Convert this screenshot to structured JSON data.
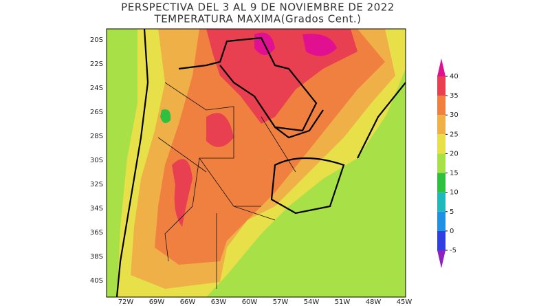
{
  "header": {
    "title": "PERSPECTIVA DEL 3 AL 9 DE NOVIEMBRE DE 2022",
    "subtitle": "TEMPERATURA MAXIMA(Grados Cent.)"
  },
  "map": {
    "lat_labels": [
      "20S",
      "22S",
      "24S",
      "26S",
      "28S",
      "30S",
      "32S",
      "34S",
      "36S",
      "38S",
      "40S"
    ],
    "lon_labels": [
      "72W",
      "69W",
      "66W",
      "63W",
      "60W",
      "57W",
      "54W",
      "51W",
      "48W",
      "45W"
    ]
  },
  "colorbar": {
    "ticks": [
      40,
      35,
      30,
      25,
      20,
      15,
      10,
      5,
      0,
      -5
    ],
    "colors": [
      "#e01090",
      "#e84050",
      "#f08040",
      "#f0b048",
      "#e8e048",
      "#a8e048",
      "#30c040",
      "#20b8b8",
      "#2090e0",
      "#3040e0",
      "#9020c0"
    ]
  }
}
